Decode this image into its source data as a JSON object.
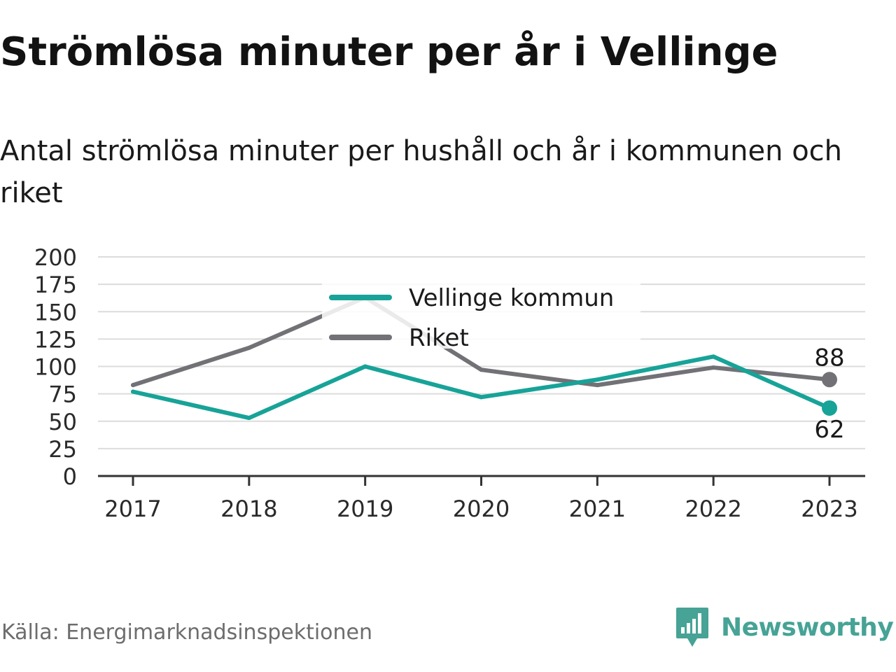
{
  "title": "Strömlösa minuter per år i Vellinge",
  "subtitle": "Antal strömlösa minuter per hushåll och år i kommunen och riket",
  "source": "Källa: Energimarknadsinspektionen",
  "brand": {
    "name": "Newsworthy",
    "icon": "newsworthy-logo-icon",
    "color": "#46a395"
  },
  "chart_data": {
    "type": "line",
    "x": [
      "2017",
      "2018",
      "2019",
      "2020",
      "2021",
      "2022",
      "2023"
    ],
    "series": [
      {
        "name": "Vellinge kommun",
        "values": [
          77,
          53,
          100,
          72,
          88,
          109,
          62
        ],
        "color": "#17a398"
      },
      {
        "name": "Riket",
        "values": [
          83,
          117,
          163,
          97,
          83,
          99,
          88
        ],
        "color": "#727176"
      }
    ],
    "end_labels": [
      {
        "series": "Riket",
        "text": "88",
        "position": "above"
      },
      {
        "series": "Vellinge kommun",
        "text": "62",
        "position": "below"
      }
    ],
    "ylim": [
      0,
      200
    ],
    "yticks": [
      0,
      25,
      50,
      75,
      100,
      125,
      150,
      175,
      200
    ],
    "grid": true,
    "legend_position": "top-center"
  }
}
